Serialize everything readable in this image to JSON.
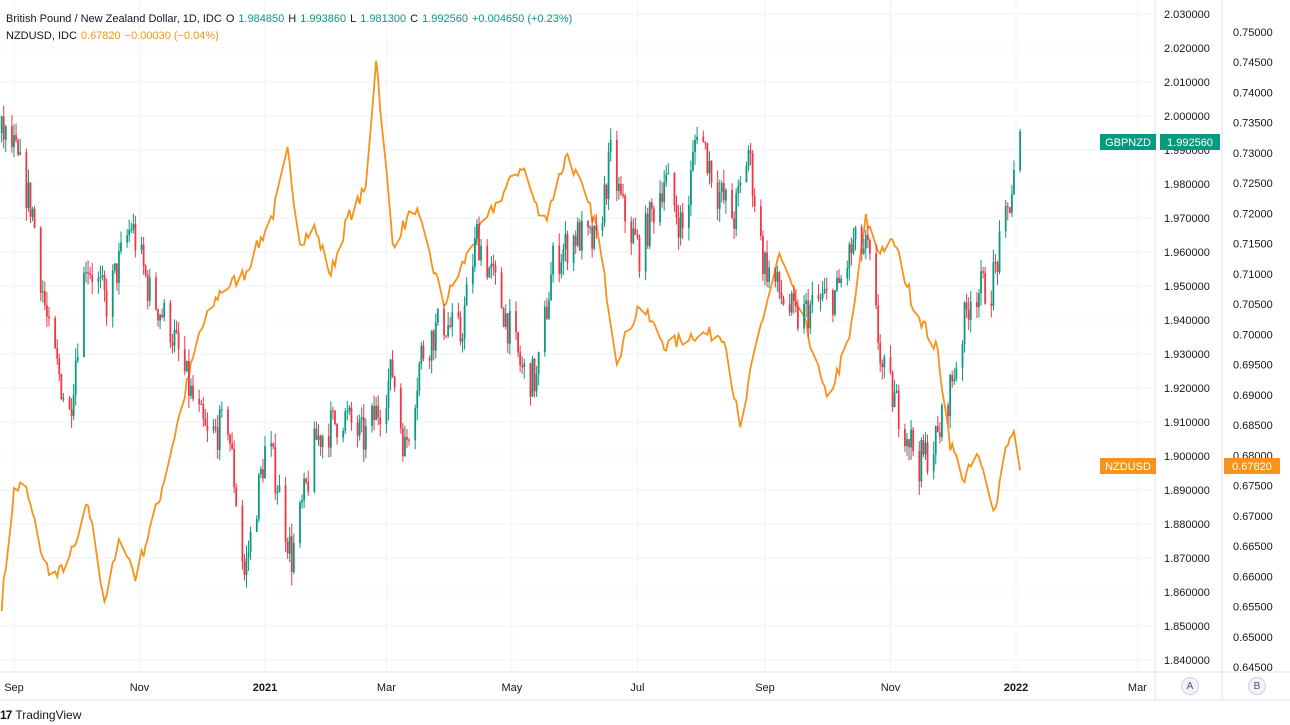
{
  "legend": {
    "gbpnzd_name": "British Pound / New Zealand Dollar, 1D, IDC",
    "open_label": "O",
    "open": "1.984850",
    "high_label": "H",
    "high": "1.993860",
    "low_label": "L",
    "low": "1.981300",
    "close_label": "C",
    "close": "1.992560",
    "change": "+0.004650 (+0.23%)",
    "nzdusd_name": "NZDUSD, IDC",
    "nzdusd_value": "0.67820",
    "nzdusd_change": "−0.00030 (−0.04%)"
  },
  "badges": {
    "gbpnzd_symbol": "GBPNZD",
    "gbpnzd_price": "1.992560",
    "nzdusd_symbol": "NZDUSD",
    "nzdusd_price": "0.67820"
  },
  "axis_buttons": {
    "a": "A",
    "b": "B"
  },
  "branding": {
    "logo": "17",
    "name": "TradingView"
  },
  "colors": {
    "up": "#089981",
    "down": "#f23645",
    "nzd_line": "#f7931a",
    "grid": "#f0f3fa",
    "axis_text": "#131722"
  },
  "chart_data": [
    {
      "type": "candlestick",
      "series_name": "GBPNZD",
      "interval": "1D",
      "ylim": [
        1.835,
        2.032
      ],
      "y_ticks": [
        "2.030000",
        "2.020000",
        "2.010000",
        "2.000000",
        "1.990000",
        "1.980000",
        "1.970000",
        "1.960000",
        "1.950000",
        "1.940000",
        "1.930000",
        "1.920000",
        "1.910000",
        "1.900000",
        "1.890000",
        "1.880000",
        "1.870000",
        "1.860000",
        "1.850000",
        "1.840000"
      ],
      "x_ticks": [
        "Sep",
        "Nov",
        "2021",
        "Mar",
        "May",
        "Jul",
        "Sep",
        "Nov",
        "2022",
        "Mar"
      ],
      "x_range": [
        "2020-08-26",
        "2022-04-05"
      ],
      "keypoints": [
        [
          "2020-08-26",
          1.995
        ],
        [
          "2020-09-01",
          1.99
        ],
        [
          "2020-09-10",
          1.972
        ],
        [
          "2020-09-18",
          1.935
        ],
        [
          "2020-09-28",
          1.912
        ],
        [
          "2020-10-06",
          1.958
        ],
        [
          "2020-10-16",
          1.945
        ],
        [
          "2020-10-28",
          1.968
        ],
        [
          "2020-11-06",
          1.948
        ],
        [
          "2020-11-16",
          1.938
        ],
        [
          "2020-11-26",
          1.918
        ],
        [
          "2020-12-04",
          1.905
        ],
        [
          "2020-12-14",
          1.91
        ],
        [
          "2020-12-22",
          1.865
        ],
        [
          "2021-01-02",
          1.905
        ],
        [
          "2021-01-07",
          1.892
        ],
        [
          "2021-01-14",
          1.87
        ],
        [
          "2021-01-26",
          1.905
        ],
        [
          "2021-02-08",
          1.912
        ],
        [
          "2021-02-18",
          1.905
        ],
        [
          "2021-02-26",
          1.915
        ],
        [
          "2021-03-04",
          1.925
        ],
        [
          "2021-03-10",
          1.902
        ],
        [
          "2021-03-18",
          1.93
        ],
        [
          "2021-03-28",
          1.94
        ],
        [
          "2021-04-06",
          1.935
        ],
        [
          "2021-04-14",
          1.965
        ],
        [
          "2021-04-26",
          1.945
        ],
        [
          "2021-05-06",
          1.925
        ],
        [
          "2021-05-13",
          1.922
        ],
        [
          "2021-05-21",
          1.957
        ],
        [
          "2021-06-01",
          1.965
        ],
        [
          "2021-06-11",
          1.962
        ],
        [
          "2021-06-18",
          1.988
        ],
        [
          "2021-06-24",
          1.972
        ],
        [
          "2021-07-02",
          1.96
        ],
        [
          "2021-07-14",
          1.982
        ],
        [
          "2021-07-24",
          1.965
        ],
        [
          "2021-07-30",
          1.998
        ],
        [
          "2021-08-09",
          1.978
        ],
        [
          "2021-08-17",
          1.97
        ],
        [
          "2021-08-24",
          1.99
        ],
        [
          "2021-08-31",
          1.958
        ],
        [
          "2021-09-08",
          1.948
        ],
        [
          "2021-09-16",
          1.94
        ],
        [
          "2021-09-27",
          1.945
        ],
        [
          "2021-10-06",
          1.948
        ],
        [
          "2021-10-14",
          1.962
        ],
        [
          "2021-10-21",
          1.96
        ],
        [
          "2021-10-28",
          1.925
        ],
        [
          "2021-11-06",
          1.912
        ],
        [
          "2021-11-15",
          1.898
        ],
        [
          "2021-11-24",
          1.905
        ],
        [
          "2021-12-02",
          1.925
        ],
        [
          "2021-12-10",
          1.948
        ],
        [
          "2021-12-20",
          1.95
        ],
        [
          "2021-12-27",
          1.968
        ],
        [
          "2022-01-03",
          1.992
        ]
      ]
    },
    {
      "type": "line",
      "series_name": "NZDUSD",
      "ylim": [
        0.6435,
        0.7555
      ],
      "y_ticks": [
        "0.75000",
        "0.74500",
        "0.74000",
        "0.73500",
        "0.73000",
        "0.72500",
        "0.72000",
        "0.71500",
        "0.71000",
        "0.70500",
        "0.70000",
        "0.69500",
        "0.69000",
        "0.68500",
        "0.68000",
        "0.67500",
        "0.67000",
        "0.66500",
        "0.66000",
        "0.65500",
        "0.65000",
        "0.64500"
      ],
      "keypoints": [
        [
          "2020-08-26",
          0.6555
        ],
        [
          "2020-09-01",
          0.674
        ],
        [
          "2020-09-06",
          0.6755
        ],
        [
          "2020-09-16",
          0.662
        ],
        [
          "2020-09-22",
          0.66
        ],
        [
          "2020-10-01",
          0.665
        ],
        [
          "2020-10-07",
          0.672
        ],
        [
          "2020-10-15",
          0.656
        ],
        [
          "2020-10-23",
          0.6665
        ],
        [
          "2020-10-30",
          0.66
        ],
        [
          "2020-11-10",
          0.672
        ],
        [
          "2020-11-20",
          0.686
        ],
        [
          "2020-11-30",
          0.7
        ],
        [
          "2020-12-10",
          0.707
        ],
        [
          "2020-12-22",
          0.71
        ],
        [
          "2021-01-05",
          0.72
        ],
        [
          "2021-01-12",
          0.73
        ],
        [
          "2021-01-18",
          0.7155
        ],
        [
          "2021-01-25",
          0.7175
        ],
        [
          "2021-02-02",
          0.71
        ],
        [
          "2021-02-10",
          0.719
        ],
        [
          "2021-02-19",
          0.724
        ],
        [
          "2021-02-24",
          0.746
        ],
        [
          "2021-03-04",
          0.715
        ],
        [
          "2021-03-15",
          0.721
        ],
        [
          "2021-03-29",
          0.705
        ],
        [
          "2021-04-12",
          0.715
        ],
        [
          "2021-04-25",
          0.7225
        ],
        [
          "2021-05-06",
          0.728
        ],
        [
          "2021-05-16",
          0.718
        ],
        [
          "2021-05-28",
          0.73
        ],
        [
          "2021-06-11",
          0.718
        ],
        [
          "2021-06-21",
          0.696
        ],
        [
          "2021-07-02",
          0.705
        ],
        [
          "2021-07-15",
          0.698
        ],
        [
          "2021-07-28",
          0.7
        ],
        [
          "2021-08-12",
          0.7
        ],
        [
          "2021-08-20",
          0.684
        ],
        [
          "2021-08-28",
          0.699
        ],
        [
          "2021-09-08",
          0.713
        ],
        [
          "2021-09-22",
          0.7
        ],
        [
          "2021-10-01",
          0.689
        ],
        [
          "2021-10-12",
          0.699
        ],
        [
          "2021-10-20",
          0.719
        ],
        [
          "2021-10-26",
          0.714
        ],
        [
          "2021-11-03",
          0.715
        ],
        [
          "2021-11-12",
          0.705
        ],
        [
          "2021-11-24",
          0.697
        ],
        [
          "2021-11-30",
          0.682
        ],
        [
          "2021-12-07",
          0.676
        ],
        [
          "2021-12-13",
          0.68
        ],
        [
          "2021-12-22",
          0.671
        ],
        [
          "2021-12-27",
          0.682
        ],
        [
          "2022-01-01",
          0.6835
        ],
        [
          "2022-01-03",
          0.6782
        ]
      ]
    }
  ]
}
